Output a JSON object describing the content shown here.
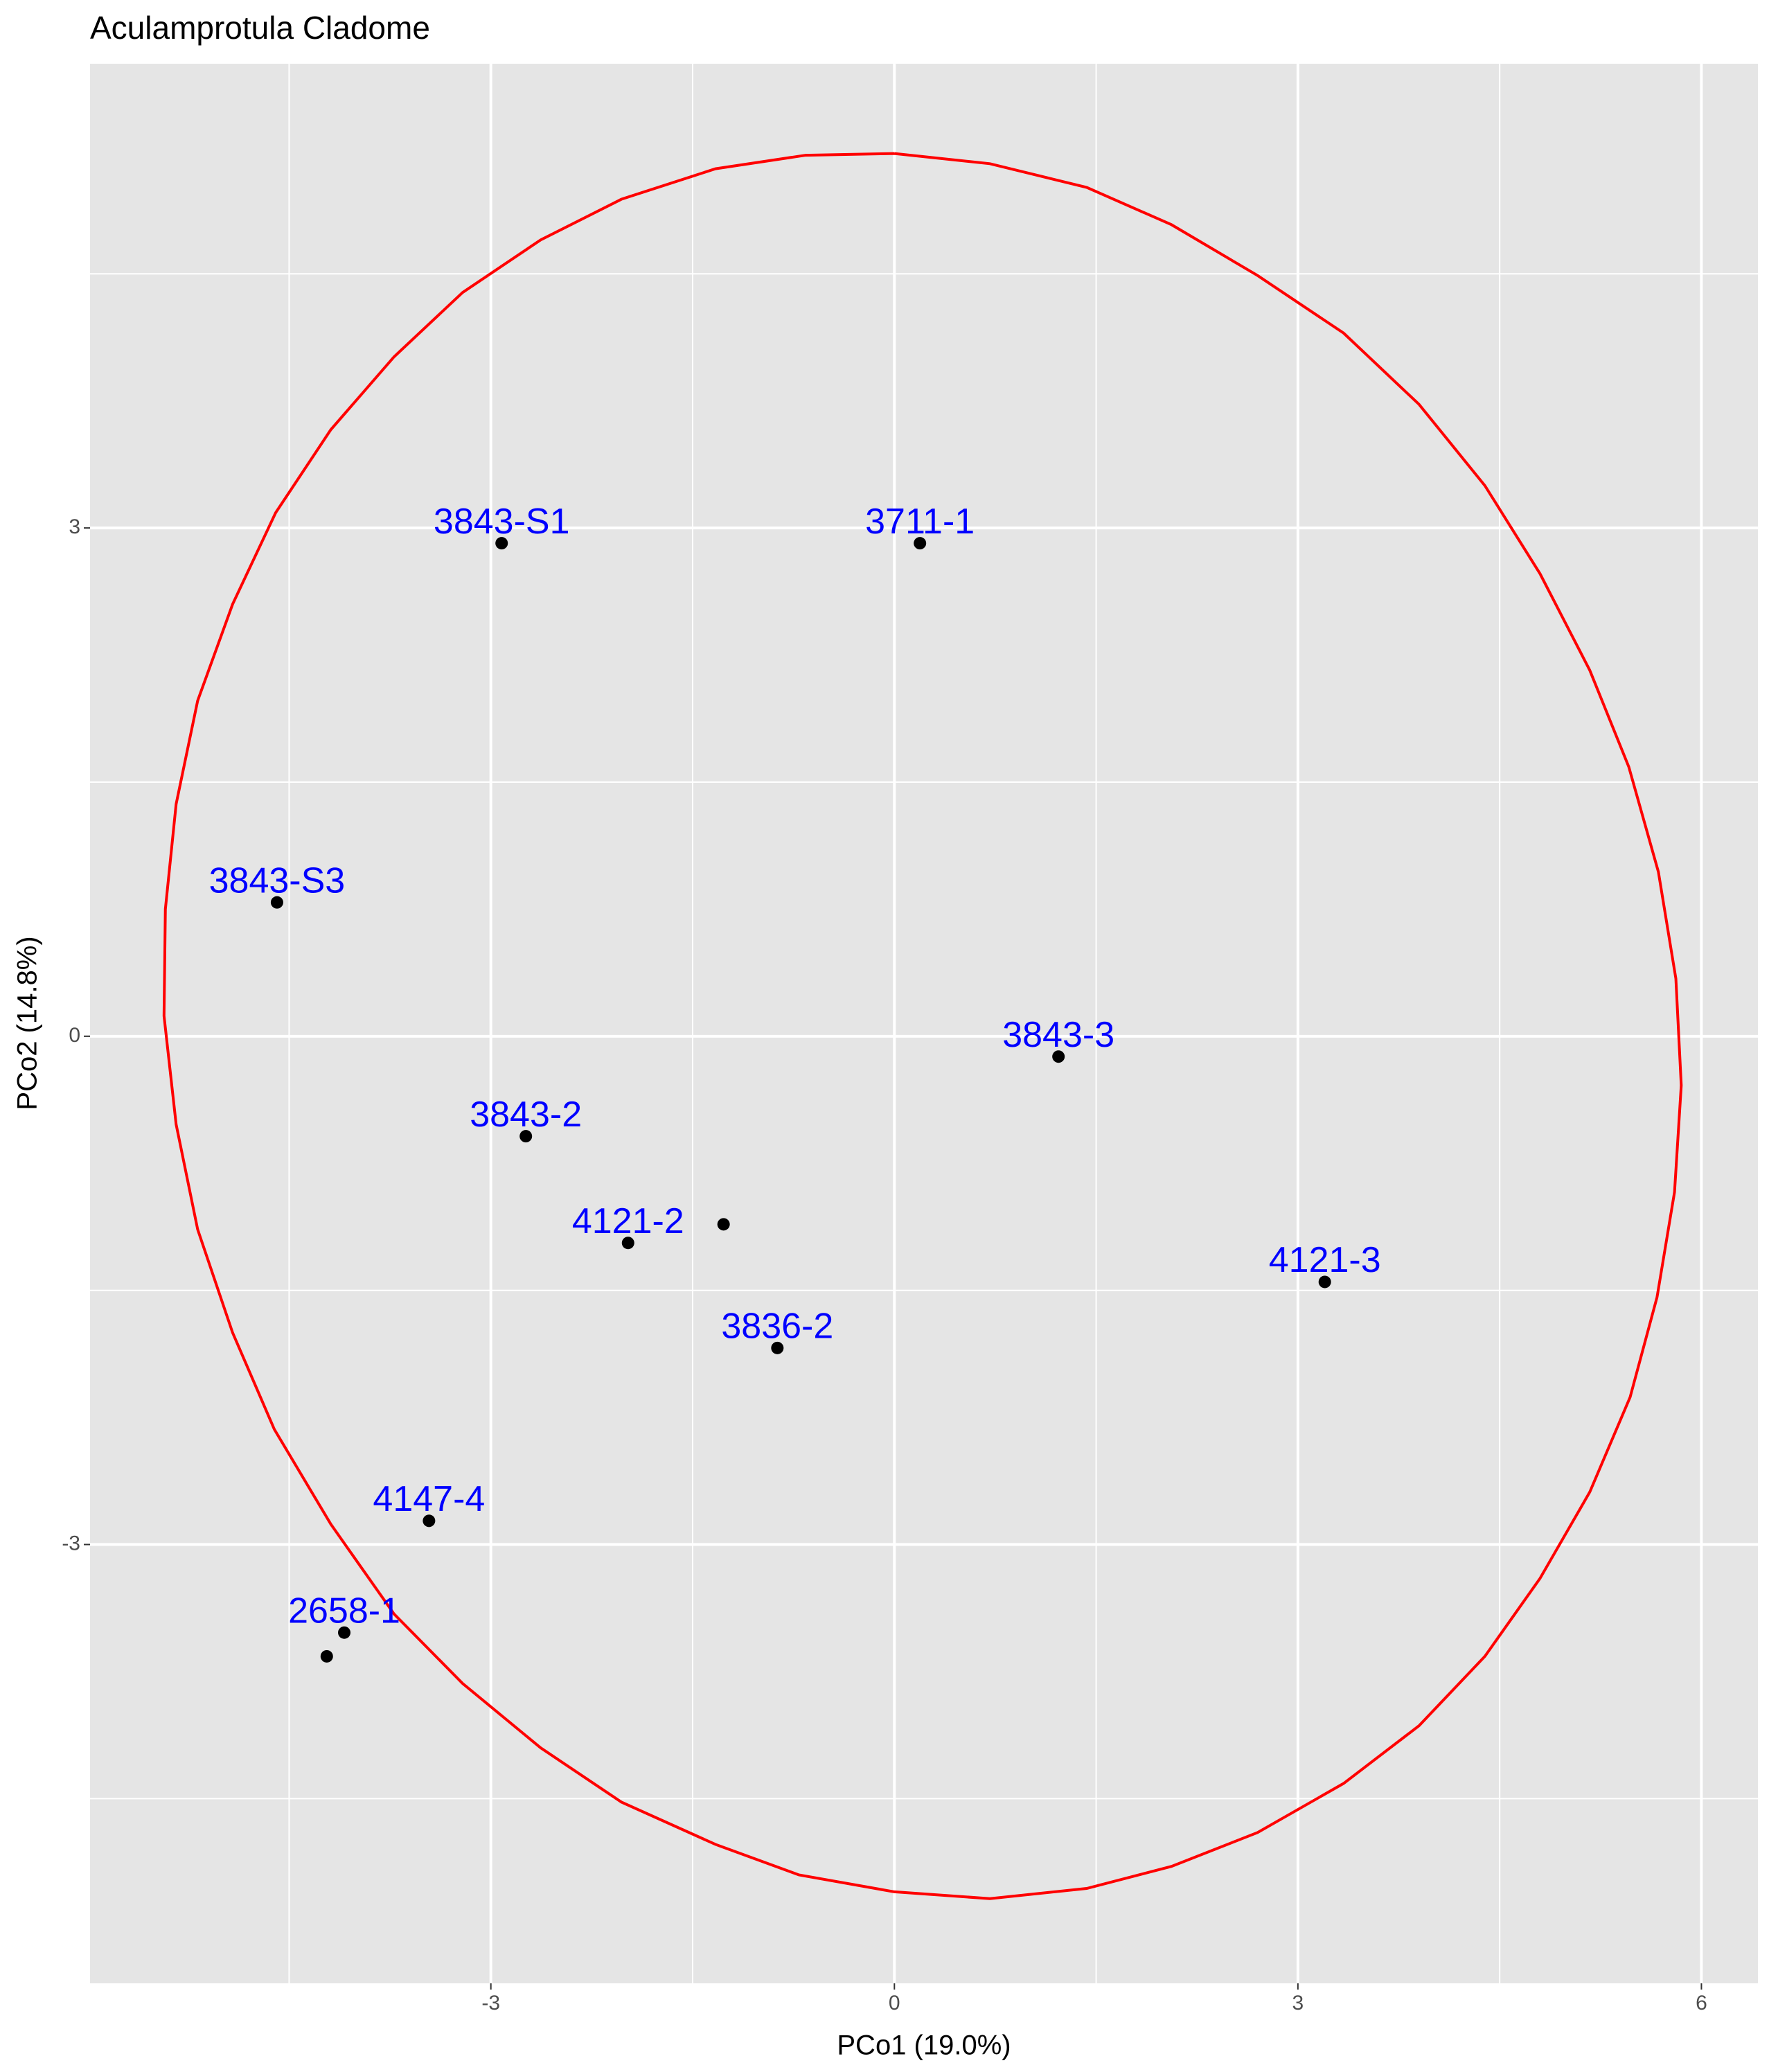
{
  "chart_data": {
    "type": "scatter",
    "title": "Aculamprotula Cladome",
    "xlabel": "PCo1 (19.0%)",
    "ylabel": "PCo2 (14.8%)",
    "xlim": [
      -5.98,
      6.42
    ],
    "ylim": [
      -5.59,
      5.74
    ],
    "xticks": [
      -3,
      0,
      3,
      6
    ],
    "yticks": [
      -3,
      0,
      3
    ],
    "grid": true,
    "points": {
      "x": [
        -2.92,
        0.19,
        -4.59,
        1.22,
        -2.74,
        -1.98,
        -1.27,
        -0.87,
        3.2,
        -3.46,
        -4.09,
        -4.22
      ],
      "y": [
        2.91,
        2.91,
        0.79,
        -0.12,
        -0.59,
        -1.22,
        -1.11,
        -1.84,
        -1.45,
        -2.86,
        -3.52,
        -3.66
      ],
      "labels": [
        "3843-S1",
        "3711-1",
        "3843-S3",
        "3843-3",
        "3843-2",
        "4121-2",
        null,
        "3836-2",
        "4121-3",
        "4147-4",
        "2658-1",
        null
      ],
      "color": "#000000",
      "label_color": "#0000ff"
    },
    "ellipse": {
      "x": [
        0.0,
        0.71,
        1.43,
        2.06,
        2.7,
        3.34,
        3.9,
        4.39,
        4.8,
        5.17,
        5.46,
        5.68,
        5.81,
        5.85,
        5.8,
        5.67,
        5.47,
        5.17,
        4.8,
        4.39,
        3.9,
        3.34,
        2.7,
        2.06,
        1.43,
        0.71,
        0.0,
        -0.71,
        -1.33,
        -2.03,
        -2.63,
        -3.21,
        -3.72,
        -4.19,
        -4.61,
        -4.92,
        -5.18,
        -5.34,
        -5.43,
        -5.42,
        -5.34,
        -5.18,
        -4.92,
        -4.6,
        -4.19,
        -3.72,
        -3.21,
        -2.63,
        -2.03,
        -1.33,
        -0.66,
        0.0
      ],
      "y": [
        5.21,
        5.15,
        5.01,
        4.79,
        4.49,
        4.15,
        3.73,
        3.25,
        2.73,
        2.16,
        1.59,
        0.97,
        0.34,
        -0.29,
        -0.92,
        -1.54,
        -2.13,
        -2.69,
        -3.2,
        -3.66,
        -4.07,
        -4.41,
        -4.7,
        -4.9,
        -5.03,
        -5.09,
        -5.05,
        -4.95,
        -4.77,
        -4.52,
        -4.2,
        -3.82,
        -3.41,
        -2.88,
        -2.32,
        -1.75,
        -1.14,
        -0.52,
        0.12,
        0.75,
        1.37,
        1.98,
        2.55,
        3.09,
        3.58,
        4.01,
        4.39,
        4.7,
        4.94,
        5.12,
        5.2,
        5.21
      ],
      "color": "#ff0000"
    }
  }
}
